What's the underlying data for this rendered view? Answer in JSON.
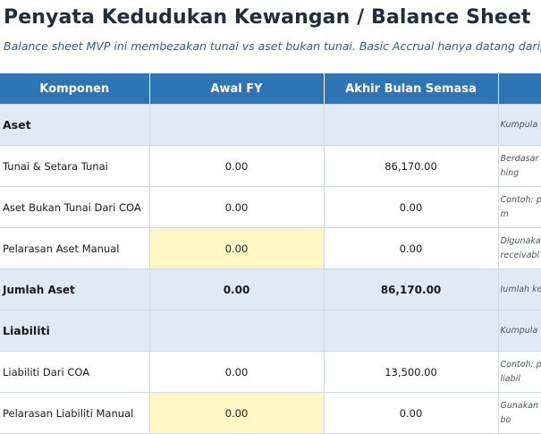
{
  "title": "Penyata Kedudukan Kewangan / Balance Sheet",
  "subtitle": "Balance sheet MVP ini membezakan tunai vs aset bukan tunai. Basic Accrual hanya datang daripad",
  "columns": {
    "komponen": "Komponen",
    "awal": "Awal FY",
    "akhir": "Akhir Bulan Semasa",
    "nota": ""
  },
  "rows": [
    {
      "type": "section",
      "label": "Aset",
      "awal": "",
      "akhir": "",
      "note": "Kumpula"
    },
    {
      "type": "line",
      "label": "Tunai & Setara Tunai",
      "awal": "0.00",
      "akhir": "86,170.00",
      "note": "Berdasar tunai hing"
    },
    {
      "type": "line",
      "label": "Aset Bukan Tunai Dari COA",
      "awal": "0.00",
      "akhir": "0.00",
      "note": "Contoh: p direkod m"
    },
    {
      "type": "manual",
      "label": "Pelarasan Aset Manual",
      "awal": "0.00",
      "akhir": "0.00",
      "note": "Digunaka receivabl"
    },
    {
      "type": "total",
      "label": "Jumlah Aset",
      "awal": "0.00",
      "akhir": "86,170.00",
      "note": "Jumlah ke"
    },
    {
      "type": "section",
      "label": "Liabiliti",
      "awal": "",
      "akhir": "",
      "note": "Kumpula"
    },
    {
      "type": "line",
      "label": "Liabiliti Dari COA",
      "awal": "0.00",
      "akhir": "13,500.00",
      "note": "Contoh: p COA liabil"
    },
    {
      "type": "manual",
      "label": "Pelarasan Liabiliti Manual",
      "awal": "0.00",
      "akhir": "0.00",
      "note": "Gunakan belum bo"
    }
  ]
}
